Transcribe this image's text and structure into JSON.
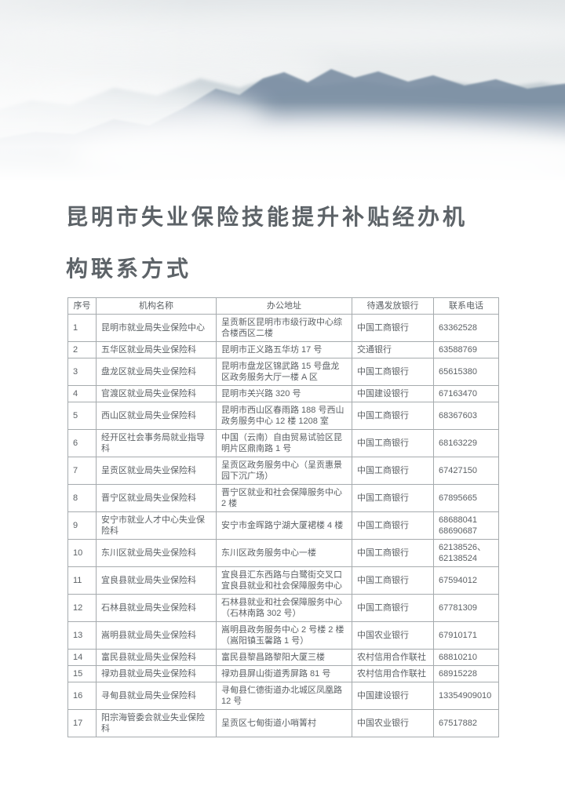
{
  "page": {
    "hero_image": "misty-mountains-landscape",
    "title_lines": [
      "昆明市失业保险技能提升补贴经办机",
      "构联系方式"
    ]
  },
  "colors": {
    "title_text": "#5d6368",
    "table_text": "#5c6165",
    "table_border": "#a6abae",
    "sky_top": "#e2e6e8",
    "mountain_far": "#a7b6bf",
    "mountain_main": "#748996",
    "mountain_near": "#7e95a2"
  },
  "table": {
    "headers": [
      "序号",
      "机构名称",
      "办公地址",
      "待遇发放银行",
      "联系电话"
    ],
    "rows": [
      {
        "no": "1",
        "name": "昆明市就业局失业保险中心",
        "address": "呈贡新区昆明市市级行政中心综合楼西区二楼",
        "bank": "中国工商银行",
        "phone": "63362528"
      },
      {
        "no": "2",
        "name": "五华区就业局失业保险科",
        "address": "昆明市正义路五华坊 17 号",
        "bank": "交通银行",
        "phone": "63588769"
      },
      {
        "no": "3",
        "name": "盘龙区就业局失业保险科",
        "address": "昆明市盘龙区锦武路 15 号盘龙区政务服务大厅一楼 A 区",
        "bank": "中国工商银行",
        "phone": "65615380"
      },
      {
        "no": "4",
        "name": "官渡区就业局失业保险科",
        "address": "昆明市关兴路 320 号",
        "bank": "中国建设银行",
        "phone": "67163470"
      },
      {
        "no": "5",
        "name": "西山区就业局失业保险科",
        "address": "昆明市西山区春雨路 188 号西山政务服务中心 12 楼 1208 室",
        "bank": "中国工商银行",
        "phone": "68367603"
      },
      {
        "no": "6",
        "name": "经开区社会事务局就业指导科",
        "address": "中国（云南）自由贸易试验区昆明片区鼎南路 1 号",
        "bank": "中国工商银行",
        "phone": "68163229"
      },
      {
        "no": "7",
        "name": "呈贡区就业局失业保险科",
        "address": "呈贡区政务服务中心（呈贡惠景园下沉广场）",
        "bank": "中国工商银行",
        "phone": "67427150"
      },
      {
        "no": "8",
        "name": "晋宁区就业局失业保险科",
        "address": "晋宁区就业和社会保障服务中心 2 楼",
        "bank": "中国工商银行",
        "phone": "67895665"
      },
      {
        "no": "9",
        "name": "安宁市就业人才中心失业保险科",
        "address": "安宁市金晖路宁湖大厦裙楼 4 楼",
        "bank": "中国工商银行",
        "phone": "68688041\n68690687"
      },
      {
        "no": "10",
        "name": "东川区就业局失业保险科",
        "address": "东川区政务服务中心一楼",
        "bank": "中国工商银行",
        "phone": "62138526、\n62138524"
      },
      {
        "no": "11",
        "name": "宜良县就业局失业保险科",
        "address": "宜良县汇东西路与白鹭街交叉口宜良县就业和社会保障服务中心",
        "bank": "中国工商银行",
        "phone": "67594012"
      },
      {
        "no": "12",
        "name": "石林县就业局失业保险科",
        "address": "石林县就业和社会保障服务中心（石林南路 302 号）",
        "bank": "中国工商银行",
        "phone": "67781309"
      },
      {
        "no": "13",
        "name": "嵩明县就业局失业保险科",
        "address": "嵩明县政务服务中心 2 号楼 2 楼（嵩阳镇玉馨路 1 号）",
        "bank": "中国农业银行",
        "phone": "67910171"
      },
      {
        "no": "14",
        "name": "富民县就业局失业保险科",
        "address": "富民县黎昌路黎阳大厦三楼",
        "bank": "农村信用合作联社",
        "phone": "68810210"
      },
      {
        "no": "15",
        "name": "禄劝县就业局失业保险科",
        "address": "禄劝县屏山街道秀屏路 81 号",
        "bank": "农村信用合作联社",
        "phone": "68915228"
      },
      {
        "no": "16",
        "name": "寻甸县就业局失业保险科",
        "address": "寻甸县仁德街道办北城区凤凰路 12 号",
        "bank": "中国建设银行",
        "phone": "13354909010"
      },
      {
        "no": "17",
        "name": "阳宗海管委会就业失业保险科",
        "address": "呈贡区七甸街道小哨箐村",
        "bank": "中国农业银行",
        "phone": "67517882"
      }
    ]
  }
}
